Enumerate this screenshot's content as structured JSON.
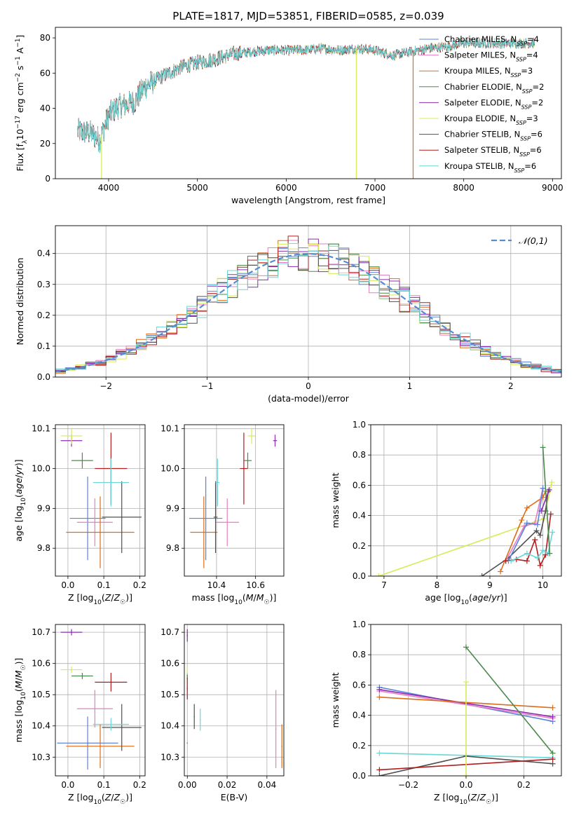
{
  "title": "PLATE=1817, MJD=53851, FIBERID=0585, z=0.039",
  "colors": {
    "chabrier_miles": "#5b82dc",
    "salpeter_miles": "#e57fc2",
    "kroupa_miles": "#dd6d1a",
    "chabrier_elodie": "#4c8a4c",
    "salpeter_elodie": "#8b2bb0",
    "kroupa_elodie": "#d4ec55",
    "chabrier_stelib": "#505050",
    "salpeter_stelib": "#b01e1e",
    "kroupa_stelib": "#6ad6d6"
  },
  "legend_series": [
    {
      "name": "Chabrier MILES, N",
      "sub": "SSP",
      "tail": "=4",
      "color_key": "chabrier_miles"
    },
    {
      "name": "Salpeter MILES, N",
      "sub": "SSP",
      "tail": "=4",
      "color_key": "salpeter_miles"
    },
    {
      "name": "Kroupa MILES, N",
      "sub": "SSP",
      "tail": "=3",
      "color_key": "kroupa_miles"
    },
    {
      "name": "Chabrier ELODIE, N",
      "sub": "SSP",
      "tail": "=2",
      "color_key": "chabrier_elodie"
    },
    {
      "name": "Salpeter ELODIE, N",
      "sub": "SSP",
      "tail": "=2",
      "color_key": "salpeter_elodie"
    },
    {
      "name": "Kroupa ELODIE, N",
      "sub": "SSP",
      "tail": "=3",
      "color_key": "kroupa_elodie"
    },
    {
      "name": "Chabrier STELIB, N",
      "sub": "SSP",
      "tail": "=6",
      "color_key": "chabrier_stelib"
    },
    {
      "name": "Salpeter STELIB, N",
      "sub": "SSP",
      "tail": "=6",
      "color_key": "salpeter_stelib"
    },
    {
      "name": "Kroupa STELIB, N",
      "sub": "SSP",
      "tail": "=6",
      "color_key": "kroupa_stelib"
    }
  ],
  "chart_data": [
    {
      "id": "spectrum",
      "type": "line",
      "xlabel": "wavelength [Angstrom, rest frame]",
      "ylabel": "Flux [f_λ 10^-17 erg cm^-2 s^-1 A^-1]",
      "xlim": [
        3400,
        9100
      ],
      "ylim": [
        0,
        86
      ],
      "xticks": [
        4000,
        5000,
        6000,
        7000,
        8000,
        9000
      ],
      "yticks": [
        0,
        20,
        40,
        60,
        80
      ],
      "grid": false,
      "legend": "top-right",
      "spectrum_x_range": [
        3650,
        8800
      ],
      "continuum": [
        [
          3650,
          27
        ],
        [
          3800,
          26
        ],
        [
          3900,
          22
        ],
        [
          4000,
          36
        ],
        [
          4100,
          41
        ],
        [
          4200,
          42
        ],
        [
          4300,
          44
        ],
        [
          4400,
          52
        ],
        [
          4600,
          58
        ],
        [
          4800,
          63
        ],
        [
          5000,
          66
        ],
        [
          5200,
          68
        ],
        [
          5400,
          71
        ],
        [
          5600,
          72
        ],
        [
          5800,
          73
        ],
        [
          6000,
          73
        ],
        [
          6200,
          73
        ],
        [
          6400,
          74
        ],
        [
          6600,
          73
        ],
        [
          6800,
          74
        ],
        [
          7000,
          73
        ],
        [
          7200,
          70
        ],
        [
          7400,
          72
        ],
        [
          7600,
          74
        ],
        [
          7800,
          75
        ],
        [
          8000,
          77
        ],
        [
          8200,
          77
        ],
        [
          8400,
          77
        ],
        [
          8600,
          77
        ],
        [
          8800,
          77
        ]
      ],
      "absorption_spikes": [
        {
          "x": 3920,
          "y": 0,
          "series": "kroupa_elodie"
        },
        {
          "x": 6790,
          "y": 0,
          "series": "kroupa_elodie"
        },
        {
          "x": 7430,
          "y": 0,
          "series": "kroupa_miles"
        }
      ]
    },
    {
      "id": "residual-histogram",
      "type": "histogram",
      "xlabel": "(data-model)/error",
      "ylabel": "Normed distribution",
      "xlim": [
        -2.5,
        2.5
      ],
      "ylim": [
        0,
        0.49
      ],
      "xticks": [
        -2,
        -1,
        0,
        1,
        2
      ],
      "yticks": [
        0.0,
        0.1,
        0.2,
        0.3,
        0.4
      ],
      "grid": true,
      "legend": "top-right",
      "reference_curve": {
        "name": "𝒩(0,1)",
        "mean": 0,
        "sigma": 1
      },
      "bin_width": 0.1
    },
    {
      "id": "age-vs-z",
      "type": "errorbar",
      "xlabel": "Z [log₁₀(Z/Z☉)]",
      "ylabel": "age  [log₁₀(age/yr)]",
      "xlim": [
        -0.035,
        0.215
      ],
      "ylim": [
        9.73,
        10.11
      ],
      "xticks": [
        0.0,
        0.1,
        0.2
      ],
      "yticks": [
        9.8,
        9.9,
        10.0,
        10.1
      ],
      "grid": true,
      "points": [
        {
          "series": "chabrier_miles",
          "x": 0.055,
          "xerr": 0.05,
          "y": 9.875,
          "yerr": 0.105
        },
        {
          "series": "salpeter_miles",
          "x": 0.075,
          "xerr": 0.05,
          "y": 9.865,
          "yerr": 0.06
        },
        {
          "series": "kroupa_miles",
          "x": 0.09,
          "xerr": 0.095,
          "y": 9.84,
          "yerr": 0.09
        },
        {
          "series": "chabrier_elodie",
          "x": 0.04,
          "xerr": 0.03,
          "y": 10.02,
          "yerr": 0.02
        },
        {
          "series": "salpeter_elodie",
          "x": 0.01,
          "xerr": 0.03,
          "y": 10.07,
          "yerr": 0.015
        },
        {
          "series": "kroupa_elodie",
          "x": 0.01,
          "xerr": 0.03,
          "y": 10.082,
          "yerr": 0.02
        },
        {
          "series": "chabrier_stelib",
          "x": 0.15,
          "xerr": 0.055,
          "y": 9.878,
          "yerr": 0.09
        },
        {
          "series": "salpeter_stelib",
          "x": 0.12,
          "xerr": 0.045,
          "y": 10.0,
          "yerr": 0.09
        },
        {
          "series": "kroupa_stelib",
          "x": 0.12,
          "xerr": 0.05,
          "y": 9.965,
          "yerr": 0.06
        }
      ]
    },
    {
      "id": "age-vs-mass",
      "type": "errorbar",
      "xlabel": "mass [log₁₀(M/M☉)]",
      "ylabel": "",
      "xlim": [
        10.235,
        10.745
      ],
      "ylim": [
        9.73,
        10.11
      ],
      "xticks": [
        10.4,
        10.6
      ],
      "yticks": [
        9.8,
        9.9,
        10.0,
        10.1
      ],
      "grid": true,
      "points": [
        {
          "series": "chabrier_miles",
          "x": 10.345,
          "xerr": 0.085,
          "y": 9.875,
          "yerr": 0.105
        },
        {
          "series": "salpeter_miles",
          "x": 10.455,
          "xerr": 0.06,
          "y": 9.865,
          "yerr": 0.06
        },
        {
          "series": "kroupa_miles",
          "x": 10.335,
          "xerr": 0.07,
          "y": 9.84,
          "yerr": 0.09
        },
        {
          "series": "chabrier_elodie",
          "x": 10.56,
          "xerr": 0.02,
          "y": 10.02,
          "yerr": 0.02
        },
        {
          "series": "salpeter_elodie",
          "x": 10.7,
          "xerr": 0.01,
          "y": 10.07,
          "yerr": 0.015
        },
        {
          "series": "kroupa_elodie",
          "x": 10.58,
          "xerr": 0.02,
          "y": 10.082,
          "yerr": 0.02
        },
        {
          "series": "chabrier_stelib",
          "x": 10.395,
          "xerr": 0.01,
          "y": 9.878,
          "yerr": 0.09
        },
        {
          "series": "salpeter_stelib",
          "x": 10.54,
          "xerr": 0.02,
          "y": 10.0,
          "yerr": 0.09
        },
        {
          "series": "kroupa_stelib",
          "x": 10.405,
          "xerr": 0.01,
          "y": 9.965,
          "yerr": 0.06
        }
      ]
    },
    {
      "id": "mass-weight-vs-age",
      "type": "line",
      "xlabel": "age  [log₁₀(age/yr)]",
      "ylabel": "mass weight",
      "xlim": [
        6.75,
        10.35
      ],
      "ylim": [
        0,
        1
      ],
      "xticks": [
        7,
        8,
        9,
        10
      ],
      "yticks": [
        0.0,
        0.2,
        0.4,
        0.6,
        0.8,
        1.0
      ],
      "grid": true,
      "series": [
        {
          "series": "kroupa_elodie",
          "x": [
            6.9,
            10.02,
            10.17
          ],
          "y": [
            0.0,
            0.38,
            0.62
          ]
        },
        {
          "series": "chabrier_stelib",
          "x": [
            8.85,
            9.35,
            9.88,
            9.95,
            10.05,
            10.1
          ],
          "y": [
            0.0,
            0.12,
            0.3,
            0.27,
            0.43,
            0.56
          ]
        },
        {
          "series": "kroupa_miles",
          "x": [
            9.2,
            9.6,
            9.7,
            10.0,
            10.05
          ],
          "y": [
            0.03,
            0.37,
            0.45,
            0.52,
            0.56
          ]
        },
        {
          "series": "salpeter_miles",
          "x": [
            9.3,
            9.65,
            9.85,
            10.0
          ],
          "y": [
            0.1,
            0.33,
            0.35,
            0.58
          ]
        },
        {
          "series": "chabrier_miles",
          "x": [
            9.35,
            9.7,
            9.9,
            10.0
          ],
          "y": [
            0.1,
            0.35,
            0.34,
            0.58
          ]
        },
        {
          "series": "salpeter_stelib",
          "x": [
            9.3,
            9.5,
            9.7,
            9.85,
            9.95,
            10.05,
            10.15
          ],
          "y": [
            0.1,
            0.11,
            0.1,
            0.24,
            0.07,
            0.14,
            0.41
          ]
        },
        {
          "series": "kroupa_stelib",
          "x": [
            9.4,
            9.7,
            9.9,
            10.0,
            10.1,
            10.18
          ],
          "y": [
            0.1,
            0.15,
            0.12,
            0.17,
            0.15,
            0.29
          ]
        },
        {
          "series": "chabrier_elodie",
          "x": [
            10.0,
            10.13
          ],
          "y": [
            0.85,
            0.15
          ]
        },
        {
          "series": "salpeter_elodie",
          "x": [
            9.97,
            10.12
          ],
          "y": [
            0.43,
            0.57
          ]
        }
      ]
    },
    {
      "id": "mass-vs-z",
      "type": "errorbar",
      "xlabel": "Z [log₁₀(Z/Z☉)]",
      "ylabel": "mass [log₁₀(M/M☉)]",
      "xlim": [
        -0.035,
        0.215
      ],
      "ylim": [
        10.24,
        10.725
      ],
      "xticks": [
        0.0,
        0.1,
        0.2
      ],
      "yticks": [
        10.3,
        10.4,
        10.5,
        10.6,
        10.7
      ],
      "grid": true,
      "points": [
        {
          "series": "chabrier_miles",
          "x": 0.055,
          "xerr": 0.085,
          "y": 10.345,
          "yerr": 0.085
        },
        {
          "series": "salpeter_miles",
          "x": 0.075,
          "xerr": 0.05,
          "y": 10.455,
          "yerr": 0.06
        },
        {
          "series": "kroupa_miles",
          "x": 0.09,
          "xerr": 0.095,
          "y": 10.335,
          "yerr": 0.07
        },
        {
          "series": "chabrier_elodie",
          "x": 0.04,
          "xerr": 0.03,
          "y": 10.56,
          "yerr": 0.01
        },
        {
          "series": "salpeter_elodie",
          "x": 0.01,
          "xerr": 0.03,
          "y": 10.7,
          "yerr": 0.01
        },
        {
          "series": "kroupa_elodie",
          "x": 0.01,
          "xerr": 0.03,
          "y": 10.58,
          "yerr": 0.01
        },
        {
          "series": "chabrier_stelib",
          "x": 0.15,
          "xerr": 0.055,
          "y": 10.395,
          "yerr": 0.075
        },
        {
          "series": "salpeter_stelib",
          "x": 0.12,
          "xerr": 0.045,
          "y": 10.54,
          "yerr": 0.03
        },
        {
          "series": "kroupa_stelib",
          "x": 0.12,
          "xerr": 0.05,
          "y": 10.405,
          "yerr": 0.02
        }
      ]
    },
    {
      "id": "mass-vs-ebv",
      "type": "errorbar",
      "xlabel": "E(B-V)",
      "ylabel": "",
      "xlim": [
        -0.0015,
        0.0485
      ],
      "ylim": [
        10.24,
        10.725
      ],
      "xticks": [
        0.0,
        0.02,
        0.04
      ],
      "yticks": [
        10.3,
        10.4,
        10.5,
        10.6,
        10.7
      ],
      "grid": true,
      "points": [
        {
          "series": "chabrier_miles",
          "x": 0.0,
          "xerr": 0,
          "y": 10.345,
          "yerr": 0.0
        },
        {
          "series": "salpeter_miles",
          "x": 0.0445,
          "xerr": 0,
          "y": 10.39,
          "yerr": 0.125
        },
        {
          "series": "kroupa_miles",
          "x": 0.0475,
          "xerr": 0,
          "y": 10.335,
          "yerr": 0.07
        },
        {
          "series": "chabrier_elodie",
          "x": 0.0,
          "xerr": 0,
          "y": 10.56,
          "yerr": 0.01
        },
        {
          "series": "salpeter_elodie",
          "x": 0.0,
          "xerr": 0,
          "y": 10.69,
          "yerr": 0.02
        },
        {
          "series": "kroupa_elodie",
          "x": 0.0,
          "xerr": 0,
          "y": 10.58,
          "yerr": 0.015
        },
        {
          "series": "chabrier_stelib",
          "x": 0.0035,
          "xerr": 0,
          "y": 10.43,
          "yerr": 0.04
        },
        {
          "series": "salpeter_stelib",
          "x": 0.0,
          "xerr": 0,
          "y": 10.52,
          "yerr": 0.035
        },
        {
          "series": "kroupa_stelib",
          "x": 0.0065,
          "xerr": 0,
          "y": 10.42,
          "yerr": 0.035
        }
      ]
    },
    {
      "id": "mass-weight-vs-z",
      "type": "line",
      "xlabel": "Z [log₁₀(Z/Z☉)]",
      "ylabel": "mass weight",
      "xlim": [
        -0.33,
        0.33
      ],
      "ylim": [
        0,
        1
      ],
      "xticks": [
        -0.2,
        0.0,
        0.2
      ],
      "yticks": [
        0.0,
        0.2,
        0.4,
        0.6,
        0.8,
        1.0
      ],
      "grid": true,
      "series": [
        {
          "series": "chabrier_miles",
          "x": [
            -0.3,
            0.3
          ],
          "y": [
            0.585,
            0.36
          ]
        },
        {
          "series": "salpeter_miles",
          "x": [
            -0.3,
            0.3
          ],
          "y": [
            0.56,
            0.38
          ]
        },
        {
          "series": "salpeter_elodie",
          "x": [
            -0.3,
            0.3
          ],
          "y": [
            0.57,
            0.39
          ]
        },
        {
          "series": "kroupa_miles",
          "x": [
            -0.3,
            0.3
          ],
          "y": [
            0.52,
            0.45
          ]
        },
        {
          "series": "chabrier_elodie",
          "x": [
            0.0,
            0.3
          ],
          "y": [
            0.85,
            0.15
          ]
        },
        {
          "series": "kroupa_stelib",
          "x": [
            -0.3,
            0.3
          ],
          "y": [
            0.15,
            0.12
          ]
        },
        {
          "series": "chabrier_stelib",
          "x": [
            -0.3,
            0.0,
            0.3
          ],
          "y": [
            0.0,
            0.13,
            0.08
          ]
        },
        {
          "series": "salpeter_stelib",
          "x": [
            -0.3,
            0.3
          ],
          "y": [
            0.04,
            0.11
          ]
        },
        {
          "series": "kroupa_elodie",
          "x": [
            0.0,
            0.0
          ],
          "y": [
            0.0,
            0.62
          ]
        }
      ]
    }
  ],
  "tick_text": {
    "spectrum_x": [
      "4000",
      "5000",
      "6000",
      "7000",
      "8000",
      "9000"
    ],
    "spectrum_y": [
      "0",
      "20",
      "40",
      "60",
      "80"
    ],
    "hist_x": [
      "−2",
      "−1",
      "0",
      "1",
      "2"
    ],
    "hist_y": [
      "0.0",
      "0.1",
      "0.2",
      "0.3",
      "0.4"
    ],
    "z_x": [
      "0.0",
      "0.1",
      "0.2"
    ],
    "age_y": [
      "9.8",
      "9.9",
      "10.0",
      "10.1"
    ],
    "mass_x": [
      "10.4",
      "10.6"
    ],
    "mw_age_x": [
      "7",
      "8",
      "9",
      "10"
    ],
    "mw_y": [
      "0.0",
      "0.2",
      "0.4",
      "0.6",
      "0.8",
      "1.0"
    ],
    "mass_y": [
      "10.3",
      "10.4",
      "10.5",
      "10.6",
      "10.7"
    ],
    "ebv_x": [
      "0.00",
      "0.02",
      "0.04"
    ],
    "mw_z_x": [
      "−0.2",
      "0.0",
      "0.2"
    ]
  }
}
